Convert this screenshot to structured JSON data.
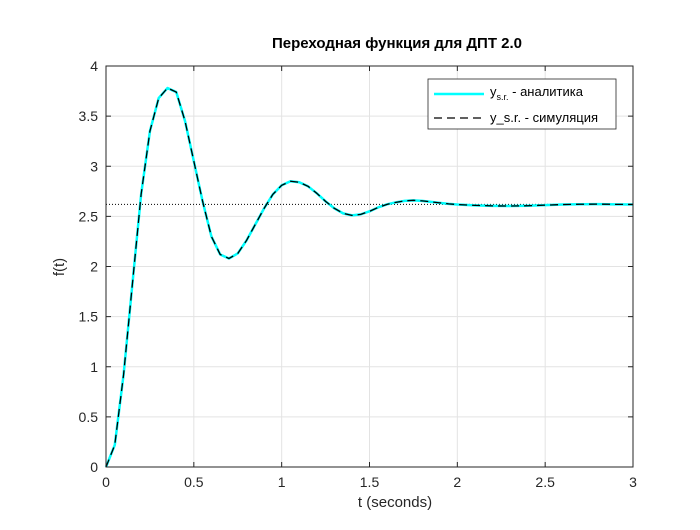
{
  "chart_data": {
    "type": "line",
    "title": "Переходная функция для ДПТ 2.0",
    "xlabel": "t (seconds)",
    "ylabel": "f(t)",
    "xlim": [
      0,
      3
    ],
    "ylim": [
      0,
      4
    ],
    "xticks": [
      "0",
      "0.5",
      "1",
      "1.5",
      "2",
      "2.5",
      "3"
    ],
    "yticks": [
      "0",
      "0.5",
      "1",
      "1.5",
      "2",
      "2.5",
      "3",
      "3.5",
      "4"
    ],
    "grid": true,
    "legend_position": "top-right",
    "steady_state": 2.62,
    "colors": {
      "analytic": "#00FFFF",
      "simulation": "#000000",
      "steady": "#000000"
    },
    "x": [
      0,
      0.05,
      0.1,
      0.15,
      0.2,
      0.25,
      0.3,
      0.35,
      0.4,
      0.45,
      0.5,
      0.55,
      0.6,
      0.65,
      0.7,
      0.75,
      0.8,
      0.85,
      0.9,
      0.95,
      1.0,
      1.05,
      1.1,
      1.15,
      1.2,
      1.25,
      1.3,
      1.35,
      1.4,
      1.45,
      1.5,
      1.55,
      1.6,
      1.65,
      1.7,
      1.75,
      1.8,
      1.85,
      1.9,
      1.95,
      2.0,
      2.1,
      2.2,
      2.3,
      2.4,
      2.5,
      2.6,
      2.7,
      2.8,
      2.9,
      3.0
    ],
    "series": [
      {
        "name": "y_{s.r.} - аналитика",
        "style": "solid",
        "values": [
          0,
          0.22,
          0.92,
          1.82,
          2.72,
          3.35,
          3.68,
          3.78,
          3.74,
          3.45,
          3.05,
          2.65,
          2.3,
          2.12,
          2.08,
          2.13,
          2.26,
          2.42,
          2.58,
          2.72,
          2.81,
          2.85,
          2.84,
          2.8,
          2.73,
          2.65,
          2.58,
          2.53,
          2.51,
          2.52,
          2.55,
          2.59,
          2.62,
          2.64,
          2.655,
          2.66,
          2.655,
          2.645,
          2.635,
          2.625,
          2.618,
          2.61,
          2.605,
          2.603,
          2.606,
          2.612,
          2.618,
          2.621,
          2.622,
          2.62,
          2.619
        ]
      },
      {
        "name": "y_s.r. - симуляция",
        "style": "dashed",
        "values": [
          0,
          0.22,
          0.92,
          1.82,
          2.72,
          3.35,
          3.68,
          3.78,
          3.74,
          3.45,
          3.05,
          2.65,
          2.3,
          2.12,
          2.08,
          2.13,
          2.26,
          2.42,
          2.58,
          2.72,
          2.81,
          2.85,
          2.84,
          2.8,
          2.73,
          2.65,
          2.58,
          2.53,
          2.51,
          2.52,
          2.55,
          2.59,
          2.62,
          2.64,
          2.655,
          2.66,
          2.655,
          2.645,
          2.635,
          2.625,
          2.618,
          2.61,
          2.605,
          2.603,
          2.606,
          2.612,
          2.618,
          2.621,
          2.622,
          2.62,
          2.619
        ]
      }
    ],
    "legend": [
      {
        "main": "y",
        "sub": "s.r.",
        "rest": " - аналитика"
      },
      {
        "main": "y_s.r. - симуляция",
        "sub": "",
        "rest": ""
      }
    ]
  }
}
